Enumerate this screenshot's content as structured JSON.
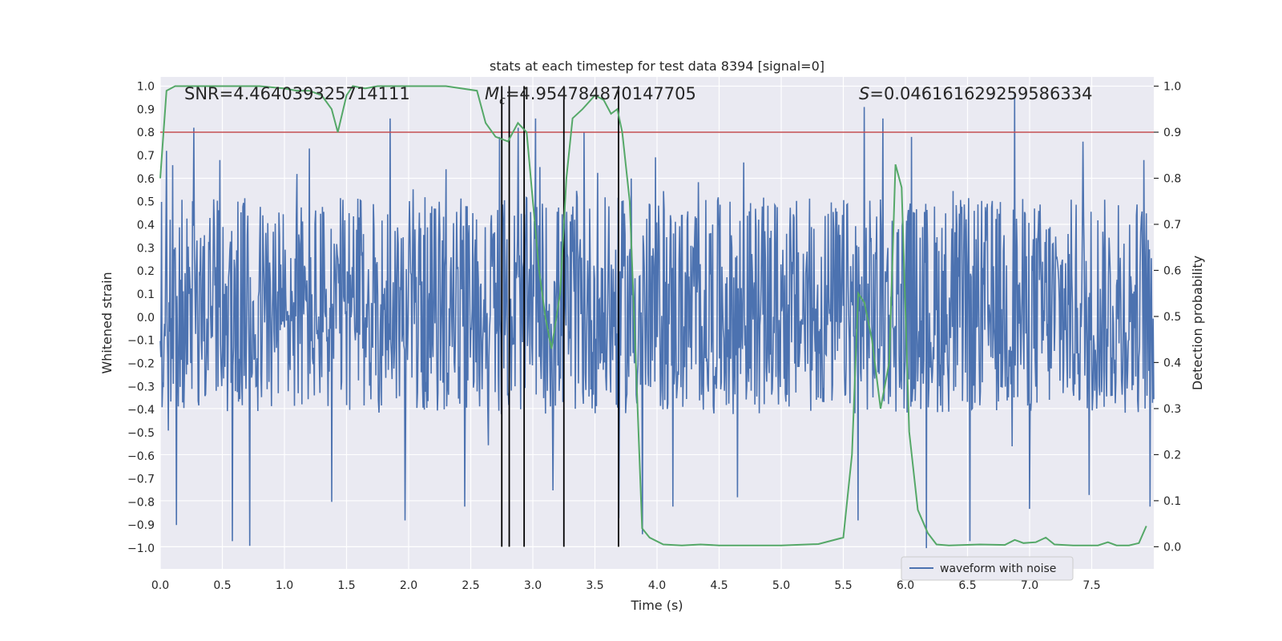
{
  "chart_data": {
    "type": "line",
    "title": "stats at each timestep for test data 8394 [signal=0]",
    "xlabel": "Time (s)",
    "ylabel_left": "Whitened strain",
    "ylabel_right": "Detection probability",
    "xlim": [
      0.0,
      8.0
    ],
    "ylim_left": [
      -1.09,
      1.04
    ],
    "ylim_right": [
      -0.048,
      1.02
    ],
    "x_ticks": [
      "0.0",
      "0.5",
      "1.0",
      "1.5",
      "2.0",
      "2.5",
      "3.0",
      "3.5",
      "4.0",
      "4.5",
      "5.0",
      "5.5",
      "6.0",
      "6.5",
      "7.0",
      "7.5"
    ],
    "x_tick_values": [
      0.0,
      0.5,
      1.0,
      1.5,
      2.0,
      2.5,
      3.0,
      3.5,
      4.0,
      4.5,
      5.0,
      5.5,
      6.0,
      6.5,
      7.0,
      7.5
    ],
    "y_left_ticks": [
      "1.0",
      "0.9",
      "0.8",
      "0.7",
      "0.6",
      "0.5",
      "0.4",
      "0.3",
      "0.2",
      "0.1",
      "0.0",
      "−0.1",
      "−0.2",
      "−0.3",
      "−0.4",
      "−0.5",
      "−0.6",
      "−0.7",
      "−0.8",
      "−0.9",
      "−1.0"
    ],
    "y_left_tick_values": [
      1.0,
      0.9,
      0.8,
      0.7,
      0.6,
      0.5,
      0.4,
      0.3,
      0.2,
      0.1,
      0.0,
      -0.1,
      -0.2,
      -0.3,
      -0.4,
      -0.5,
      -0.6,
      -0.7,
      -0.8,
      -0.9,
      -1.0
    ],
    "y_right_ticks": [
      "1.0",
      "0.9",
      "0.8",
      "0.7",
      "0.6",
      "0.5",
      "0.4",
      "0.3",
      "0.2",
      "0.1",
      "0.0"
    ],
    "y_right_tick_values": [
      1.0,
      0.9,
      0.8,
      0.7,
      0.6,
      0.5,
      0.4,
      0.3,
      0.2,
      0.1,
      0.0
    ],
    "annotations": {
      "snr": "SNR=4.464039325714111",
      "mc_symbol": "M",
      "mc_sub": "c",
      "mc_value": "=4.954784870147705",
      "s_symbol": "S",
      "s_value": "=0.046161629259586334"
    },
    "threshold": {
      "value": 0.9,
      "axis": "right",
      "color": "#c44e52"
    },
    "vlines_x": [
      2.75,
      2.81,
      2.93,
      3.25,
      3.69
    ],
    "waveform": {
      "name": "waveform with noise",
      "color": "#4c72b0",
      "samples": 1600,
      "band_typical": [
        -0.42,
        0.52
      ],
      "peaks": [
        [
          0.05,
          0.72
        ],
        [
          0.27,
          0.82
        ],
        [
          0.48,
          0.68
        ],
        [
          1.1,
          0.62
        ],
        [
          1.2,
          0.73
        ],
        [
          1.85,
          0.86
        ],
        [
          2.3,
          0.64
        ],
        [
          2.73,
          0.78
        ],
        [
          2.88,
          0.82
        ],
        [
          3.02,
          0.86
        ],
        [
          3.41,
          0.8
        ],
        [
          3.88,
          0.88
        ],
        [
          4.7,
          0.67
        ],
        [
          5.67,
          0.91
        ],
        [
          5.82,
          0.86
        ],
        [
          6.05,
          0.78
        ],
        [
          6.88,
          0.97
        ],
        [
          7.43,
          0.76
        ],
        [
          7.92,
          0.68
        ]
      ],
      "troughs": [
        [
          0.13,
          -0.9
        ],
        [
          0.58,
          -0.97
        ],
        [
          0.72,
          -0.99
        ],
        [
          1.38,
          -0.8
        ],
        [
          1.97,
          -0.88
        ],
        [
          2.45,
          -0.82
        ],
        [
          3.16,
          -0.75
        ],
        [
          3.69,
          -0.87
        ],
        [
          3.88,
          -0.94
        ],
        [
          4.13,
          -0.82
        ],
        [
          4.65,
          -0.78
        ],
        [
          5.62,
          -0.88
        ],
        [
          6.17,
          -1.0
        ],
        [
          6.52,
          -0.97
        ],
        [
          7.0,
          -0.83
        ],
        [
          7.48,
          -0.77
        ],
        [
          7.97,
          -0.82
        ]
      ]
    },
    "probability": {
      "name": "detection probability",
      "color": "#55a868",
      "x": [
        0.0,
        0.05,
        0.12,
        0.4,
        0.8,
        1.0,
        1.1,
        1.2,
        1.3,
        1.38,
        1.43,
        1.5,
        1.55,
        1.65,
        1.75,
        1.85,
        2.0,
        2.3,
        2.55,
        2.62,
        2.7,
        2.8,
        2.88,
        2.95,
        3.05,
        3.1,
        3.15,
        3.22,
        3.27,
        3.32,
        3.4,
        3.5,
        3.57,
        3.63,
        3.68,
        3.72,
        3.78,
        3.83,
        3.88,
        3.94,
        4.05,
        4.2,
        4.35,
        4.5,
        4.7,
        5.0,
        5.3,
        5.5,
        5.57,
        5.62,
        5.67,
        5.73,
        5.8,
        5.87,
        5.92,
        5.97,
        6.03,
        6.1,
        6.18,
        6.25,
        6.35,
        6.6,
        6.8,
        6.88,
        6.95,
        7.05,
        7.13,
        7.2,
        7.35,
        7.55,
        7.63,
        7.7,
        7.8,
        7.88,
        7.94
      ],
      "y": [
        0.8,
        0.99,
        1.0,
        1.0,
        1.0,
        0.995,
        0.99,
        0.99,
        0.98,
        0.95,
        0.9,
        0.98,
        1.0,
        0.995,
        1.0,
        1.0,
        1.0,
        1.0,
        0.99,
        0.92,
        0.89,
        0.88,
        0.92,
        0.9,
        0.6,
        0.5,
        0.43,
        0.55,
        0.8,
        0.93,
        0.95,
        0.98,
        0.97,
        0.94,
        0.95,
        0.9,
        0.75,
        0.4,
        0.04,
        0.02,
        0.005,
        0.003,
        0.005,
        0.003,
        0.003,
        0.003,
        0.006,
        0.02,
        0.2,
        0.55,
        0.53,
        0.45,
        0.3,
        0.4,
        0.83,
        0.78,
        0.25,
        0.08,
        0.03,
        0.005,
        0.003,
        0.005,
        0.004,
        0.015,
        0.008,
        0.01,
        0.02,
        0.005,
        0.003,
        0.003,
        0.01,
        0.003,
        0.003,
        0.008,
        0.045
      ]
    },
    "legend": {
      "position": "lower-right",
      "entries": [
        "waveform with noise"
      ]
    },
    "grid": true
  }
}
